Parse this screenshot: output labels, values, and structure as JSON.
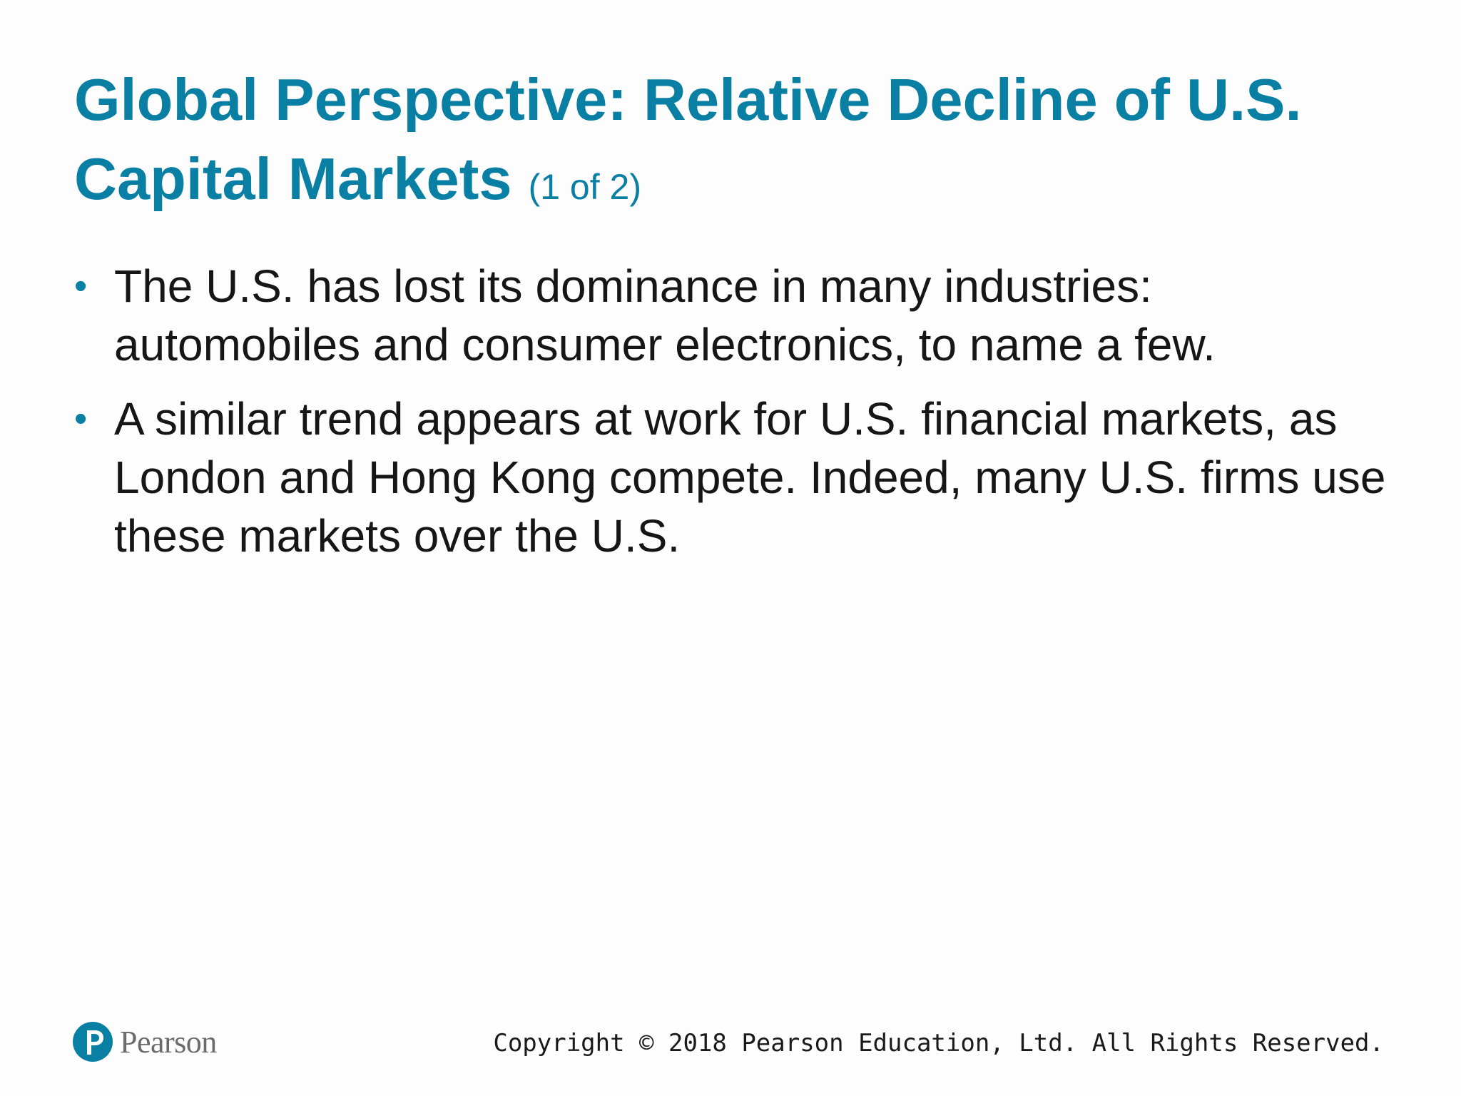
{
  "slide": {
    "title_main": "Global Perspective: Relative Decline of U.S. Capital Markets",
    "title_suffix": "(1 of 2)",
    "bullets": [
      {
        "text": "The U.S. has lost its dominance in many industries: automobiles and consumer electronics, to name a few."
      },
      {
        "text": "A similar trend appears at work for U.S. financial markets, as London and Hong Kong compete. Indeed, many U.S. firms use these markets over the U.S."
      }
    ],
    "bullet_symbol": "•"
  },
  "footer": {
    "logo_text": "Pearson",
    "logo_icon": "pearson-p-icon",
    "copyright": "Copyright © 2018 Pearson Education, Ltd. All Rights Reserved."
  },
  "colors": {
    "accent": "#0a7fa4",
    "body_text": "#161616",
    "logo_text": "#6b6b6b"
  }
}
